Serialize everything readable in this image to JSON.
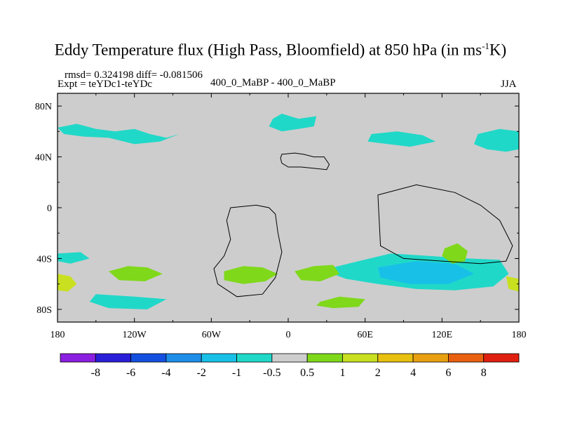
{
  "chart_data": {
    "type": "heatmap",
    "title_main": "Eddy Temperature flux (High Pass, Bloomfield) at 850 hPa (in ms",
    "title_sup": "-1",
    "title_tail": "K)",
    "stats": "rmsd= 0.324198 diff= -0.081506",
    "expt": "Expt = teYDc1-teYDc",
    "center_label": "400_0_MaBP - 400_0_MaBP",
    "season": "JJA",
    "x_range": [
      -180,
      180
    ],
    "y_range": [
      -90,
      90
    ],
    "x_ticks": [
      {
        "value": -180,
        "label": "180"
      },
      {
        "value": -120,
        "label": "120W"
      },
      {
        "value": -60,
        "label": "60W"
      },
      {
        "value": 0,
        "label": "0"
      },
      {
        "value": 60,
        "label": "60E"
      },
      {
        "value": 120,
        "label": "120E"
      },
      {
        "value": 180,
        "label": "180"
      }
    ],
    "y_ticks": [
      {
        "value": 80,
        "label": "80N"
      },
      {
        "value": 40,
        "label": "40N"
      },
      {
        "value": 0,
        "label": "0"
      },
      {
        "value": -40,
        "label": "40S"
      },
      {
        "value": -80,
        "label": "80S"
      }
    ],
    "colorbar": {
      "colors": [
        "#8b1fe0",
        "#2a1fd8",
        "#1450e0",
        "#1e8ee8",
        "#18c0e8",
        "#20d8c8",
        "#cdcdcd",
        "#7fd81a",
        "#c8e020",
        "#e8c010",
        "#e8a010",
        "#e86010",
        "#e02010"
      ],
      "labels": [
        "-8",
        "-6",
        "-4",
        "-2",
        "-1",
        "-0.5",
        "0.5",
        "1",
        "2",
        "4",
        "6",
        "8"
      ]
    },
    "background_value_color": "#cdcdcd",
    "regions": [
      {
        "value_class": "-0.5 to -1",
        "color": "#20d8c8",
        "name": "NH Pacific storm track 60N",
        "points": [
          [
            -180,
            63
          ],
          [
            -165,
            66
          ],
          [
            -150,
            62
          ],
          [
            -135,
            60
          ],
          [
            -120,
            62
          ],
          [
            -108,
            58
          ],
          [
            -95,
            55
          ],
          [
            -85,
            58
          ],
          [
            -100,
            52
          ],
          [
            -120,
            50
          ],
          [
            -140,
            55
          ],
          [
            -160,
            56
          ],
          [
            -175,
            58
          ]
        ]
      },
      {
        "value_class": "-0.5 to -1",
        "color": "#20d8c8",
        "name": "NH Atlantic 60N",
        "points": [
          [
            -12,
            70
          ],
          [
            -5,
            74
          ],
          [
            8,
            70
          ],
          [
            22,
            72
          ],
          [
            20,
            64
          ],
          [
            8,
            62
          ],
          [
            -5,
            60
          ],
          [
            -15,
            64
          ]
        ]
      },
      {
        "value_class": "-0.5 to -1",
        "color": "#20d8c8",
        "name": "NH Asia 55N",
        "points": [
          [
            65,
            58
          ],
          [
            85,
            60
          ],
          [
            105,
            57
          ],
          [
            115,
            52
          ],
          [
            95,
            48
          ],
          [
            78,
            50
          ],
          [
            62,
            52
          ]
        ]
      },
      {
        "value_class": "-0.5 to -1",
        "color": "#20d8c8",
        "name": "NH east Pacific 55N",
        "points": [
          [
            148,
            58
          ],
          [
            165,
            62
          ],
          [
            180,
            60
          ],
          [
            180,
            46
          ],
          [
            170,
            44
          ],
          [
            155,
            46
          ],
          [
            145,
            50
          ]
        ]
      },
      {
        "value_class": "-0.5 to -1",
        "color": "#20d8c8",
        "name": "SH Indian-Pacific 50S",
        "points": [
          [
            35,
            -47
          ],
          [
            55,
            -42
          ],
          [
            80,
            -36
          ],
          [
            110,
            -38
          ],
          [
            140,
            -40
          ],
          [
            165,
            -41
          ],
          [
            172,
            -52
          ],
          [
            160,
            -62
          ],
          [
            130,
            -65
          ],
          [
            100,
            -64
          ],
          [
            70,
            -60
          ],
          [
            45,
            -56
          ],
          [
            32,
            -51
          ]
        ]
      },
      {
        "value_class": "-0.5 to -1",
        "color": "#20d8c8",
        "name": "SH Pacific 70S",
        "points": [
          [
            -150,
            -68
          ],
          [
            -120,
            -70
          ],
          [
            -95,
            -72
          ],
          [
            -110,
            -80
          ],
          [
            -140,
            -79
          ],
          [
            -155,
            -74
          ]
        ]
      },
      {
        "value_class": "-1 to -2",
        "color": "#18c0e8",
        "name": "SH core 55S",
        "points": [
          [
            70,
            -47
          ],
          [
            100,
            -42
          ],
          [
            130,
            -44
          ],
          [
            145,
            -52
          ],
          [
            125,
            -60
          ],
          [
            95,
            -60
          ],
          [
            72,
            -55
          ]
        ]
      },
      {
        "value_class": "0.5 to 1",
        "color": "#7fd81a",
        "name": "SH Atlantic 50S",
        "points": [
          [
            -50,
            -50
          ],
          [
            -35,
            -46
          ],
          [
            -20,
            -47
          ],
          [
            -8,
            -52
          ],
          [
            -18,
            -58
          ],
          [
            -35,
            -60
          ],
          [
            -50,
            -57
          ]
        ]
      },
      {
        "value_class": "0.5 to 1",
        "color": "#7fd81a",
        "name": "SH south Africa 50S",
        "points": [
          [
            5,
            -50
          ],
          [
            20,
            -46
          ],
          [
            35,
            -45
          ],
          [
            40,
            -52
          ],
          [
            25,
            -58
          ],
          [
            10,
            -57
          ]
        ]
      },
      {
        "value_class": "0.5 to 1",
        "color": "#7fd81a",
        "name": "SH South Atlantic 75S",
        "points": [
          [
            25,
            -74
          ],
          [
            40,
            -70
          ],
          [
            60,
            -72
          ],
          [
            55,
            -78
          ],
          [
            35,
            -79
          ],
          [
            22,
            -77
          ]
        ]
      },
      {
        "value_class": "0.5 to 1",
        "color": "#7fd81a",
        "name": "SH Pacific 50S",
        "points": [
          [
            -140,
            -50
          ],
          [
            -125,
            -46
          ],
          [
            -110,
            -47
          ],
          [
            -98,
            -52
          ],
          [
            -112,
            -58
          ],
          [
            -132,
            -57
          ]
        ]
      },
      {
        "value_class": "0.5 to 1",
        "color": "#7fd81a",
        "name": "SH Indian 30S",
        "points": [
          [
            122,
            -32
          ],
          [
            132,
            -28
          ],
          [
            140,
            -34
          ],
          [
            138,
            -42
          ],
          [
            128,
            -44
          ],
          [
            120,
            -38
          ]
        ]
      },
      {
        "value_class": "1 to 2",
        "color": "#c8e020",
        "name": "SH dateline 60S",
        "points": [
          [
            -180,
            -52
          ],
          [
            -170,
            -54
          ],
          [
            -165,
            -60
          ],
          [
            -172,
            -66
          ],
          [
            -180,
            -65
          ]
        ]
      },
      {
        "value_class": "1 to 2",
        "color": "#c8e020",
        "name": "SH east 60S",
        "points": [
          [
            170,
            -54
          ],
          [
            180,
            -56
          ],
          [
            180,
            -66
          ],
          [
            172,
            -64
          ]
        ]
      },
      {
        "value_class": "-0.5 to -1",
        "color": "#20d8c8",
        "name": "SH west 40S",
        "points": [
          [
            -180,
            -36
          ],
          [
            -162,
            -35
          ],
          [
            -155,
            -40
          ],
          [
            -170,
            -44
          ],
          [
            -180,
            -42
          ]
        ]
      }
    ],
    "continent_outline": [
      [
        [
          -5,
          42
        ],
        [
          5,
          43
        ],
        [
          12,
          42
        ],
        [
          20,
          40
        ],
        [
          28,
          40
        ],
        [
          32,
          34
        ],
        [
          30,
          30
        ],
        [
          20,
          31
        ],
        [
          10,
          32
        ],
        [
          0,
          32
        ],
        [
          -5,
          35
        ],
        [
          -6,
          39
        ]
      ],
      [
        [
          -45,
          0
        ],
        [
          -25,
          2
        ],
        [
          -15,
          0
        ],
        [
          -10,
          -5
        ],
        [
          -8,
          -20
        ],
        [
          -5,
          -35
        ],
        [
          -10,
          -55
        ],
        [
          -20,
          -68
        ],
        [
          -40,
          -70
        ],
        [
          -55,
          -60
        ],
        [
          -58,
          -48
        ],
        [
          -50,
          -38
        ],
        [
          -45,
          -25
        ],
        [
          -48,
          -10
        ]
      ],
      [
        [
          70,
          10
        ],
        [
          100,
          18
        ],
        [
          130,
          12
        ],
        [
          150,
          2
        ],
        [
          165,
          -10
        ],
        [
          175,
          -30
        ],
        [
          170,
          -42
        ],
        [
          150,
          -44
        ],
        [
          120,
          -42
        ],
        [
          90,
          -40
        ],
        [
          72,
          -30
        ]
      ]
    ]
  }
}
